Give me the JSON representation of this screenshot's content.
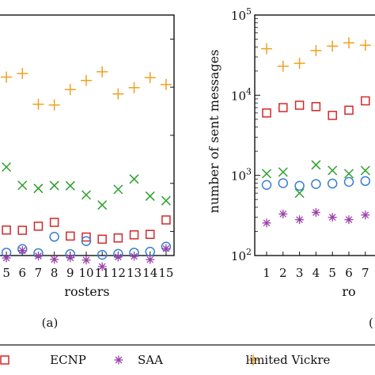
{
  "colors": {
    "ECNP": "#d62728",
    "SAA": "#9b3fa8",
    "limited_vickrey": "#f0a020",
    "cross_series": "#2ca02c",
    "circle_series": "#3a7fd0"
  },
  "chart_data": [
    {
      "type": "scatter",
      "panel_label": "(a)",
      "xlabel": "rosters",
      "ylabel": "",
      "x_ticks": [
        "5",
        "6",
        "7",
        "8",
        "9",
        "10",
        "11",
        "12",
        "13",
        "14",
        "15"
      ],
      "xlim": [
        4.5,
        15.5
      ],
      "series": [
        {
          "key": "limited_vickrey",
          "marker": "plus",
          "x": [
            5,
            6,
            7,
            8,
            9,
            10,
            11,
            12,
            13,
            14,
            15
          ],
          "y": [
            0.742,
            0.757,
            0.629,
            0.626,
            0.69,
            0.728,
            0.764,
            0.672,
            0.698,
            0.74,
            0.711
          ]
        },
        {
          "key": "cross_series",
          "marker": "cross",
          "x": [
            5,
            6,
            7,
            8,
            9,
            10,
            11,
            12,
            13,
            14,
            15
          ],
          "y": [
            0.368,
            0.292,
            0.279,
            0.291,
            0.29,
            0.252,
            0.21,
            0.275,
            0.318,
            0.247,
            0.228
          ]
        },
        {
          "key": "ECNP",
          "marker": "square",
          "x": [
            5,
            6,
            7,
            8,
            9,
            10,
            11,
            12,
            13,
            14,
            15
          ],
          "y": [
            0.106,
            0.105,
            0.122,
            0.138,
            0.081,
            0.077,
            0.068,
            0.073,
            0.086,
            0.088,
            0.148
          ]
        },
        {
          "key": "circle_series",
          "marker": "circle",
          "x": [
            5,
            6,
            7,
            8,
            9,
            10,
            11,
            12,
            13,
            14,
            15
          ],
          "y": [
            0.012,
            0.027,
            0.01,
            0.078,
            0.006,
            0.06,
            0.003,
            0.007,
            0.012,
            0.016,
            0.037
          ]
        },
        {
          "key": "SAA",
          "marker": "asterisk",
          "x": [
            5,
            6,
            7,
            8,
            9,
            10,
            11,
            12,
            13,
            14,
            15
          ],
          "y": [
            -0.01,
            0.021,
            -0.002,
            -0.016,
            -0.009,
            -0.019,
            -0.046,
            -0.006,
            -0.003,
            -0.017,
            0.029
          ]
        }
      ]
    },
    {
      "type": "scatter",
      "panel_label": "",
      "xlabel": "ro",
      "ylabel": "number of sent messages",
      "y_scale": "log",
      "ylim": [
        100,
        100000
      ],
      "y_ticks": [
        "10^2",
        "10^3",
        "10^4",
        "10^5"
      ],
      "x_ticks": [
        "1",
        "2",
        "3",
        "4",
        "5",
        "6",
        "7"
      ],
      "xlim": [
        0.5,
        7.5
      ],
      "series": [
        {
          "key": "limited_vickrey",
          "marker": "plus",
          "x": [
            1,
            2,
            3,
            4,
            5,
            6,
            7
          ],
          "y": [
            38000,
            23000,
            25000,
            36000,
            41000,
            45000,
            42000
          ]
        },
        {
          "key": "ECNP",
          "marker": "square",
          "x": [
            1,
            2,
            3,
            4,
            5,
            6,
            7
          ],
          "y": [
            6000,
            7000,
            7500,
            7200,
            5600,
            6500,
            8500
          ]
        },
        {
          "key": "cross_series",
          "marker": "cross",
          "x": [
            1,
            2,
            3,
            4,
            5,
            6,
            7
          ],
          "y": [
            1050,
            1100,
            600,
            1350,
            1150,
            1050,
            1150
          ]
        },
        {
          "key": "circle_series",
          "marker": "circle",
          "x": [
            1,
            2,
            3,
            4,
            5,
            6,
            7
          ],
          "y": [
            760,
            800,
            740,
            780,
            790,
            830,
            850
          ]
        },
        {
          "key": "SAA",
          "marker": "asterisk",
          "x": [
            1,
            2,
            3,
            4,
            5,
            6,
            7
          ],
          "y": [
            255,
            330,
            280,
            345,
            300,
            280,
            320
          ]
        }
      ]
    }
  ],
  "legend": {
    "items": [
      {
        "key": "ECNP",
        "marker": "square",
        "label": "ECNP"
      },
      {
        "key": "SAA",
        "marker": "asterisk",
        "label": "SAA"
      },
      {
        "key": "limited_vickrey",
        "marker": "plus",
        "label": "limited Vickre"
      }
    ],
    "placement": "bottom"
  },
  "panel_b_label_fragment": "("
}
